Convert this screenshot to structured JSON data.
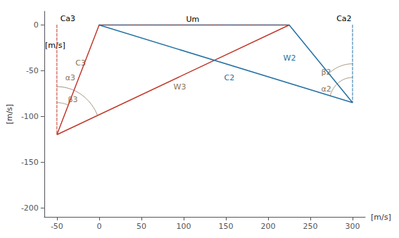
{
  "chart_data": {
    "type": "line",
    "xlabel": "[m/s]",
    "ylabel": "[m/s]",
    "xlim": [
      -65,
      315
    ],
    "ylim": [
      -210,
      15
    ],
    "xticks": [
      -50,
      0,
      50,
      100,
      150,
      200,
      250,
      300
    ],
    "yticks": [
      0,
      -50,
      -100,
      -150,
      -200
    ],
    "grid": false,
    "series": [
      {
        "x": [
          0,
          -50,
          225,
          0
        ],
        "values": [
          0,
          -120,
          0,
          0
        ],
        "color": "#c0392b",
        "line_style": "solid"
      },
      {
        "x": [
          0,
          300,
          225
        ],
        "values": [
          0,
          -85,
          0
        ],
        "color": "#2471a3",
        "line_style": "solid"
      },
      {
        "x": [
          0,
          225
        ],
        "values": [
          0,
          0
        ],
        "color": "#2471a3",
        "line_style": "dashed"
      },
      {
        "x": [
          -50,
          -50
        ],
        "values": [
          0,
          -120
        ],
        "color": "#c0392b",
        "line_style": "dashed"
      },
      {
        "x": [
          300,
          300
        ],
        "values": [
          0,
          -85
        ],
        "color": "#2471a3",
        "line_style": "dashed"
      }
    ],
    "arcs": [
      {
        "center": [
          -50,
          -120
        ],
        "width": 70,
        "height": 70,
        "theta1": 67.0,
        "theta2": 90.0,
        "color": "#8B7355"
      },
      {
        "center": [
          -50,
          -120
        ],
        "width": 105,
        "height": 105,
        "theta1": 23.5,
        "theta2": 90.0,
        "color": "#8B7355"
      },
      {
        "center": [
          300,
          -85
        ],
        "width": 55,
        "height": 55,
        "theta1": 90.0,
        "theta2": 164.2,
        "color": "#8B7355"
      },
      {
        "center": [
          300,
          -85
        ],
        "width": 85,
        "height": 85,
        "theta1": 90.0,
        "theta2": 131.4,
        "color": "#8B7355"
      }
    ],
    "annotations": [
      {
        "text": "Ca3",
        "x": -46,
        "y": 3,
        "color": "black"
      },
      {
        "text": "Ca2",
        "x": 281,
        "y": 3,
        "color": "black"
      },
      {
        "text": "[m/s]",
        "x": -64,
        "y": -22,
        "color": "black"
      },
      {
        "text": "Um",
        "x": 103,
        "y": 2,
        "color": "black"
      },
      {
        "text": "C3",
        "x": -28,
        "y": -42,
        "color": "#8B7355"
      },
      {
        "text": "W3",
        "x": 88,
        "y": -68,
        "color": "#8B7355"
      },
      {
        "text": "C2",
        "x": 148,
        "y": -58,
        "color": "#2471a3"
      },
      {
        "text": "W2",
        "x": 218,
        "y": -36,
        "color": "#2471a3"
      },
      {
        "text": "α3",
        "x": -40,
        "y": -58,
        "color": "#8B7355"
      },
      {
        "text": "β3",
        "x": -37,
        "y": -82,
        "color": "#8B7355"
      },
      {
        "text": "α2",
        "x": 263,
        "y": -70,
        "color": "#8B7355"
      },
      {
        "text": "β2",
        "x": 263,
        "y": -52,
        "color": "#8B7355"
      }
    ]
  }
}
